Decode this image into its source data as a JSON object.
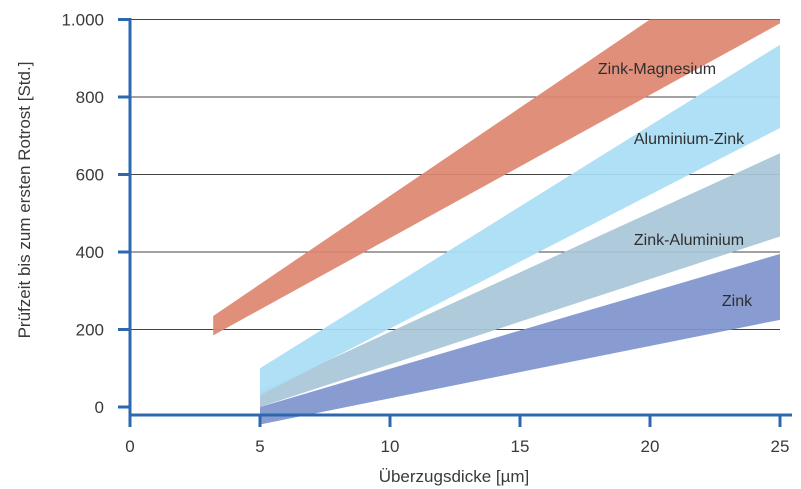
{
  "chart_data": {
    "type": "area",
    "xlabel": "Überzugsdicke [µm]",
    "ylabel": "Prüfzeit bis zum ersten Rotrost [Std.]",
    "xlim": [
      0,
      25
    ],
    "ylim": [
      -60,
      1000
    ],
    "x_ticks": [
      0,
      5,
      10,
      15,
      20,
      25
    ],
    "x_tick_labels": [
      "0",
      "5",
      "10",
      "15",
      "20",
      "25"
    ],
    "y_ticks": [
      0,
      200,
      400,
      600,
      800,
      1000
    ],
    "y_tick_labels": [
      "0",
      "200",
      "400",
      "600",
      "800",
      "1.000"
    ],
    "grid": "horizontal",
    "series": [
      {
        "name": "Zink",
        "color": "#7f95cd",
        "lower": [
          [
            5,
            -45
          ],
          [
            25,
            225
          ]
        ],
        "upper": [
          [
            5,
            0
          ],
          [
            25,
            395
          ]
        ]
      },
      {
        "name": "Zink-Aluminium",
        "color": "#a9c6d8",
        "lower": [
          [
            5,
            0
          ],
          [
            25,
            440
          ]
        ],
        "upper": [
          [
            5,
            40
          ],
          [
            25,
            655
          ]
        ]
      },
      {
        "name": "Aluminium-Zink",
        "color": "#aadef5",
        "lower": [
          [
            5,
            30
          ],
          [
            25,
            720
          ]
        ],
        "upper": [
          [
            5,
            100
          ],
          [
            25,
            935
          ]
        ]
      },
      {
        "name": "Zink-Magnesium",
        "color": "#de8670",
        "lower": [
          [
            3.2,
            185
          ],
          [
            25,
            990
          ]
        ],
        "upper": [
          [
            3.2,
            235
          ],
          [
            20,
            1000
          ],
          [
            25,
            1000
          ]
        ]
      }
    ]
  }
}
